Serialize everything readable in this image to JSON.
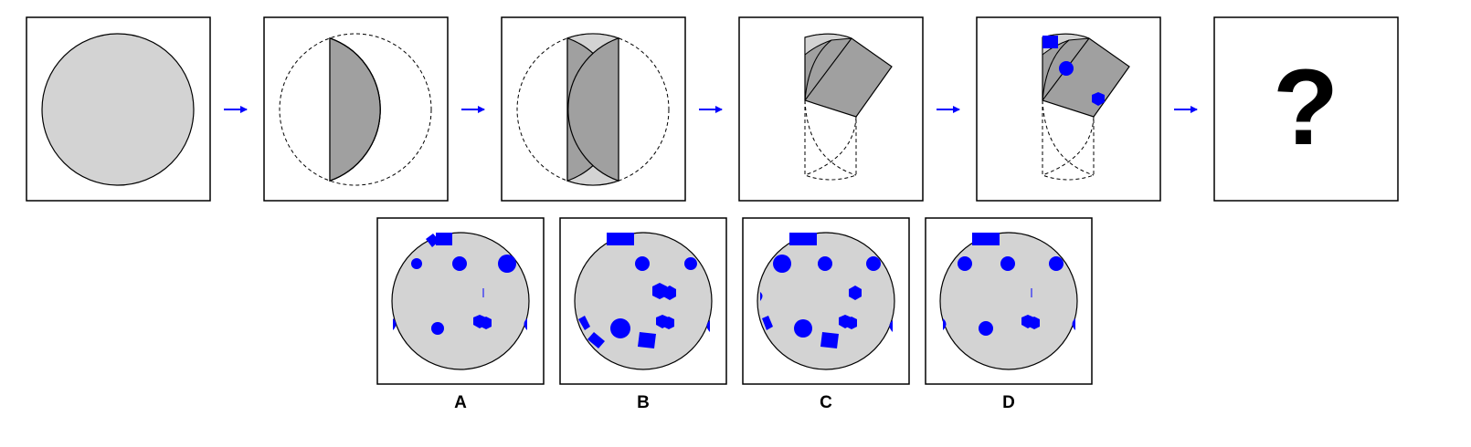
{
  "colors": {
    "paper": "#d3d3d3",
    "fold": "#a0a0a0",
    "hole": "#0000ff",
    "arrow": "#0000ff",
    "frame": "#000000"
  },
  "sequence": {
    "steps": [
      "unfolded-circle",
      "fold-left-over",
      "fold-right-over",
      "fold-diagonal",
      "punch-holes"
    ],
    "answer_placeholder": "?"
  },
  "options": [
    {
      "label": "A"
    },
    {
      "label": "B"
    },
    {
      "label": "C"
    },
    {
      "label": "D"
    }
  ]
}
